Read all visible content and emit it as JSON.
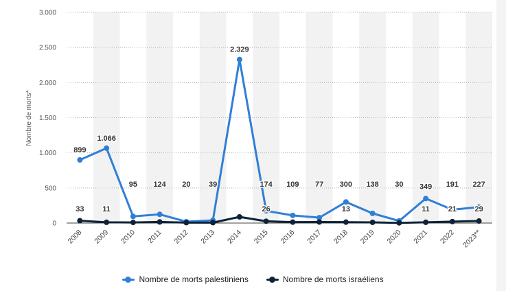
{
  "chart_data": {
    "type": "line",
    "title": "",
    "xlabel": "",
    "ylabel": "Nombre de morts*",
    "ylim": [
      0,
      3000
    ],
    "yticks": [
      0,
      500,
      1000,
      1500,
      2000,
      2500,
      3000
    ],
    "ytick_labels": [
      "0",
      "500",
      "1.000",
      "1.500",
      "2.000",
      "2.500",
      "3.000"
    ],
    "grid": "horizontal dotted",
    "alternating_column_shading": true,
    "legend_position": "bottom",
    "categories": [
      "2008",
      "2009",
      "2010",
      "2011",
      "2012",
      "2013",
      "2014",
      "2015",
      "2016",
      "2017",
      "2018",
      "2019",
      "2020",
      "2021",
      "2022",
      "2023**"
    ],
    "series": [
      {
        "name": "Nombre de morts palestiniens",
        "color": "#2f7fd6",
        "values": [
          899,
          1066,
          95,
          124,
          20,
          39,
          2329,
          174,
          109,
          77,
          300,
          138,
          30,
          349,
          191,
          227
        ],
        "labels": [
          "899",
          "1.066",
          "95",
          "124",
          "20",
          "39",
          "2.329",
          "174",
          "109",
          "77",
          "300",
          "138",
          "30",
          "349",
          "191",
          "227"
        ]
      },
      {
        "name": "Nombre de morts israéliens",
        "color": "#0e2338",
        "values": [
          33,
          11,
          9,
          16,
          6,
          6,
          88,
          26,
          13,
          15,
          13,
          10,
          3,
          11,
          21,
          29
        ],
        "labels": [
          "33",
          "11",
          "",
          "",
          "",
          "",
          "",
          "26",
          "",
          "",
          "13",
          "",
          "",
          "11",
          "21",
          "29"
        ]
      }
    ]
  }
}
